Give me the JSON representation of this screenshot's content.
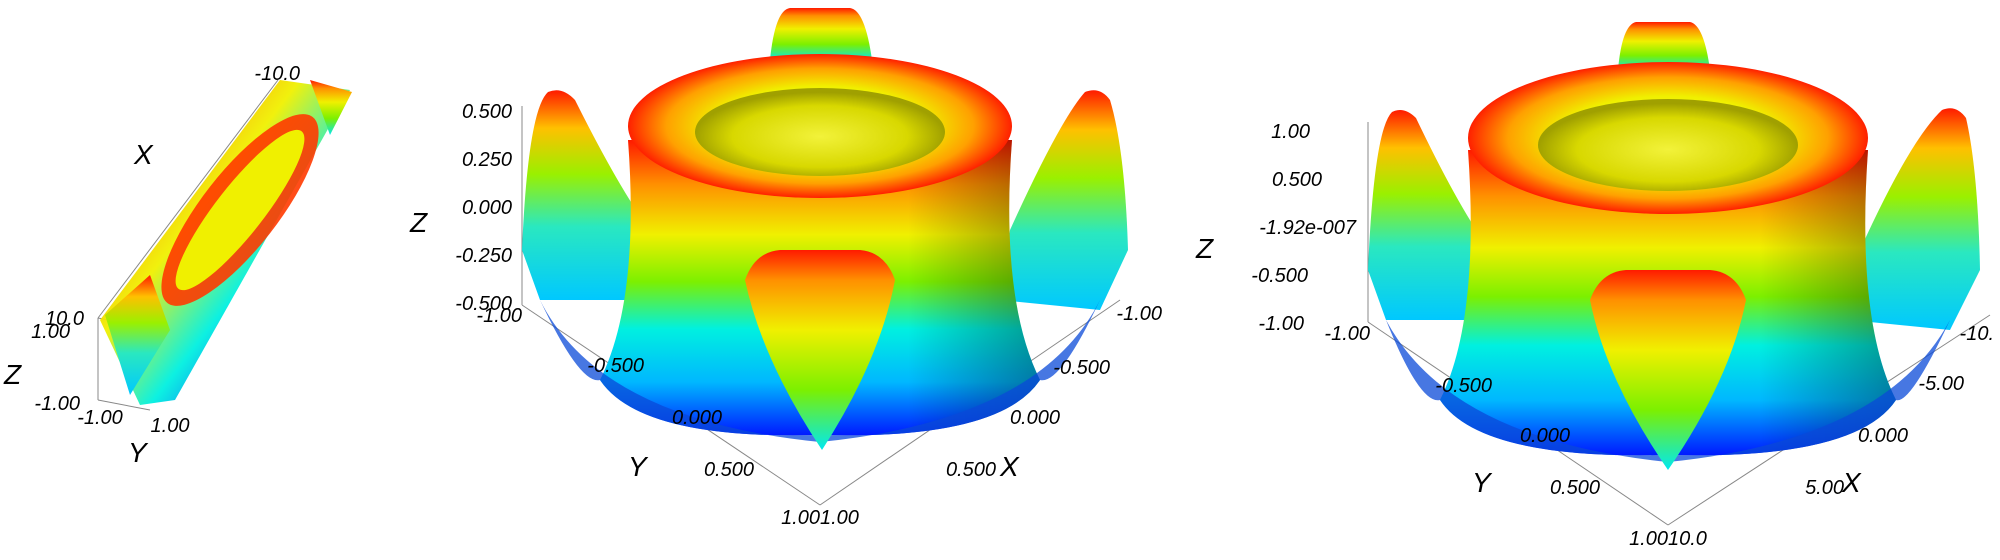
{
  "chart_data": [
    {
      "type": "surface3d",
      "panel": "left",
      "colormap": [
        "#0019ff",
        "#00b7ff",
        "#00f0e0",
        "#7cf000",
        "#f0f000",
        "#ff9000",
        "#ff1a00"
      ],
      "z_ticks": [
        "1.00",
        "-1.00"
      ],
      "y_ticks": [
        "-1.00",
        "1.00"
      ],
      "x_ticks": [
        "-10.0",
        "10.0"
      ],
      "axis_labels": {
        "x": "X",
        "y": "Y",
        "z": "Z"
      }
    },
    {
      "type": "surface3d",
      "panel": "middle",
      "colormap": [
        "#0019ff",
        "#00b7ff",
        "#00f0e0",
        "#7cf000",
        "#f0f000",
        "#ff9000",
        "#ff1a00"
      ],
      "z_ticks": [
        "0.500",
        "0.250",
        "0.000",
        "-0.250",
        "-0.500"
      ],
      "y_ticks": [
        "-1.00",
        "-0.500",
        "0.000",
        "0.500",
        "1.00"
      ],
      "x_ticks": [
        "-1.00",
        "-0.500",
        "0.000",
        "0.500",
        "1.00"
      ],
      "axis_labels": {
        "x": "X",
        "y": "Y",
        "z": "Z"
      }
    },
    {
      "type": "surface3d",
      "panel": "right",
      "colormap": [
        "#0019ff",
        "#00b7ff",
        "#00f0e0",
        "#7cf000",
        "#f0f000",
        "#ff9000",
        "#ff1a00"
      ],
      "z_ticks": [
        "1.00",
        "0.500",
        "-1.92e-007",
        "-0.500",
        "-1.00"
      ],
      "y_ticks": [
        "-1.00",
        "-0.500",
        "0.000",
        "0.500",
        "1.00"
      ],
      "x_ticks": [
        "-10.",
        "-5.00",
        "0.000",
        "5.00",
        "10.0"
      ],
      "axis_labels": {
        "x": "X",
        "y": "Y",
        "z": "Z"
      }
    }
  ]
}
